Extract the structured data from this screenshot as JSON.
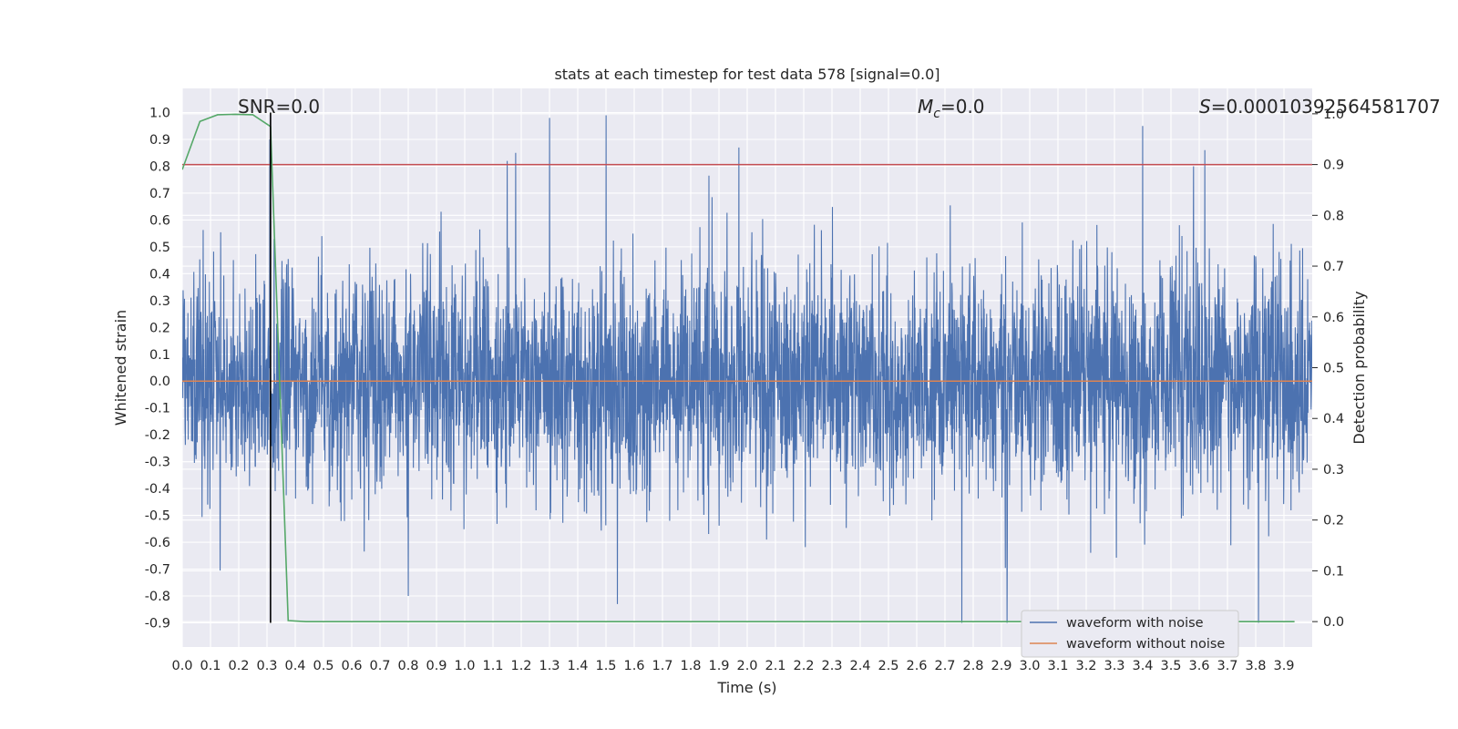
{
  "chart_data": {
    "type": "line",
    "title": "stats at each timestep for test data 578 [signal=0.0]",
    "xlabel": "Time (s)",
    "ylabel": "Whitened strain",
    "y2label": "Detection probability",
    "xlim": [
      0.0,
      4.0
    ],
    "ylim": [
      -0.99,
      1.09
    ],
    "y2lim": [
      -0.05,
      1.05
    ],
    "xticks": [
      0.0,
      0.1,
      0.2,
      0.3,
      0.4,
      0.5,
      0.6,
      0.7,
      0.8,
      0.9,
      1.0,
      1.1,
      1.2,
      1.3,
      1.4,
      1.5,
      1.6,
      1.7,
      1.8,
      1.9,
      2.0,
      2.1,
      2.2,
      2.3,
      2.4,
      2.5,
      2.6,
      2.7,
      2.8,
      2.9,
      3.0,
      3.1,
      3.2,
      3.3,
      3.4,
      3.5,
      3.6,
      3.7,
      3.8,
      3.9
    ],
    "yticks": [
      -0.9,
      -0.8,
      -0.7,
      -0.6,
      -0.5,
      -0.4,
      -0.3,
      -0.2,
      -0.1,
      0.0,
      0.1,
      0.2,
      0.3,
      0.4,
      0.5,
      0.6,
      0.7,
      0.8,
      0.9,
      1.0
    ],
    "y2ticks": [
      0.0,
      0.1,
      0.2,
      0.3,
      0.4,
      0.5,
      0.6,
      0.7,
      0.8,
      0.9,
      1.0
    ],
    "annotations": {
      "snr": "SNR=0.0",
      "mc_symbol": "M",
      "mc_sub": "c",
      "mc_value": "=0.0",
      "s_symbol": "S",
      "s_value": "=0.00010392564581707"
    },
    "series": [
      {
        "name": "waveform with noise",
        "color": "#4c72b0",
        "description": "dense whitened noise trace, approx 4096 samples, peaks near 1.0 and -0.9",
        "notable_peaks": [
          {
            "t": 1.3,
            "y": 0.98
          },
          {
            "t": 1.5,
            "y": 0.99
          },
          {
            "t": 3.4,
            "y": 0.95
          },
          {
            "t": 1.18,
            "y": 0.85
          },
          {
            "t": 3.62,
            "y": 0.86
          },
          {
            "t": 1.97,
            "y": 0.87
          },
          {
            "t": 1.15,
            "y": 0.82
          },
          {
            "t": 3.58,
            "y": 0.8
          },
          {
            "t": 0.31,
            "y": 0.9
          },
          {
            "t": 2.76,
            "y": -0.9
          },
          {
            "t": 2.92,
            "y": -0.9
          },
          {
            "t": 3.81,
            "y": -0.9
          },
          {
            "t": 1.54,
            "y": -0.83
          },
          {
            "t": 0.8,
            "y": -0.8
          }
        ]
      },
      {
        "name": "waveform without noise",
        "color": "#dd8452",
        "x": [
          0.0,
          4.0
        ],
        "values": [
          0.0,
          0.0
        ]
      },
      {
        "name": "detection probability",
        "color": "#55a868",
        "axis": "right",
        "x": [
          0.0,
          0.0625,
          0.125,
          0.1875,
          0.25,
          0.3125,
          0.375,
          0.4375,
          0.5,
          3.9375
        ],
        "values": [
          0.89,
          0.985,
          0.998,
          0.999,
          0.998,
          0.975,
          0.002,
          0.0,
          0.0,
          0.0
        ]
      },
      {
        "name": "detection threshold",
        "color": "#c44e52",
        "axis": "right",
        "x": [
          0.0,
          4.0
        ],
        "values": [
          0.9,
          0.9
        ]
      },
      {
        "name": "event marker",
        "color": "#000000",
        "x": [
          0.3125,
          0.3125
        ],
        "values": [
          -0.9,
          1.0
        ]
      }
    ],
    "legend": {
      "position": "lower-right",
      "entries": [
        {
          "label": "waveform with noise",
          "color": "#4c72b0"
        },
        {
          "label": "waveform without noise",
          "color": "#dd8452"
        }
      ]
    },
    "grid": true
  }
}
